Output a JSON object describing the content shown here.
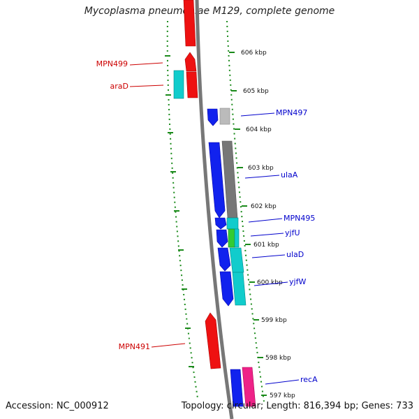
{
  "title": "Mycoplasma pneumoniae M129, complete genome",
  "footer": {
    "accession": "Accession: NC_000912",
    "summary": "Topology: circular; Length: 816,394 bp; Genes: 733"
  },
  "colors": {
    "backbone": "#888888",
    "ruler": "#1a8a1a",
    "left_label": "#cc0000",
    "right_label": "#0000cc"
  },
  "ticks": [
    "606 kbp",
    "605 kbp",
    "604 kbp",
    "603 kbp",
    "602 kbp",
    "601 kbp",
    "600 kbp",
    "599 kbp",
    "598 kbp",
    "597 kbp"
  ],
  "left_labels": [
    "MPN499",
    "araD",
    "MPN491"
  ],
  "right_labels": [
    "MPN497",
    "ulaA",
    "MPN495",
    "yjfU",
    "ulaD",
    "yjfW",
    "recA"
  ]
}
